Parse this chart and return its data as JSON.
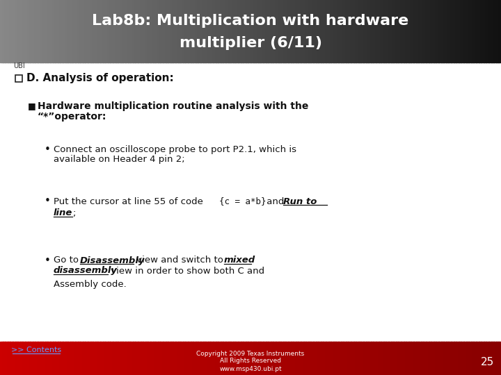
{
  "title_line1": "Lab8b: Multiplication with hardware",
  "title_line2": "multiplier (6/11)",
  "header_text_color": "#ffffff",
  "bg_color": "#ffffff",
  "footer_page": "25",
  "footer_link": ">> Contents",
  "section_label": "D. Analysis of operation:",
  "bullet1_line1": "Hardware multiplication routine analysis with the",
  "bullet1_line2": "“*”operator:",
  "bullet2_line1": "Connect an oscilloscope probe to port P2.1, which is",
  "bullet2_line2": "available on Header 4 pin 2;",
  "bullet3_pre": "Put the cursor at line 55 of code ",
  "bullet3_code": "{c = a*b}",
  "bullet3_mid": " and ",
  "bullet3_runto": "Run to",
  "bullet3_line": "line",
  "bullet3_end": ";",
  "bullet4_goto": "Go to ",
  "bullet4_disasm": "Disassembly",
  "bullet4_mid1": " view and switch to ",
  "bullet4_mixed": "mixed",
  "bullet4_disasm2": "disassembly",
  "bullet4_end1": " view in order to show both C and",
  "bullet4_end2": "Assembly code."
}
